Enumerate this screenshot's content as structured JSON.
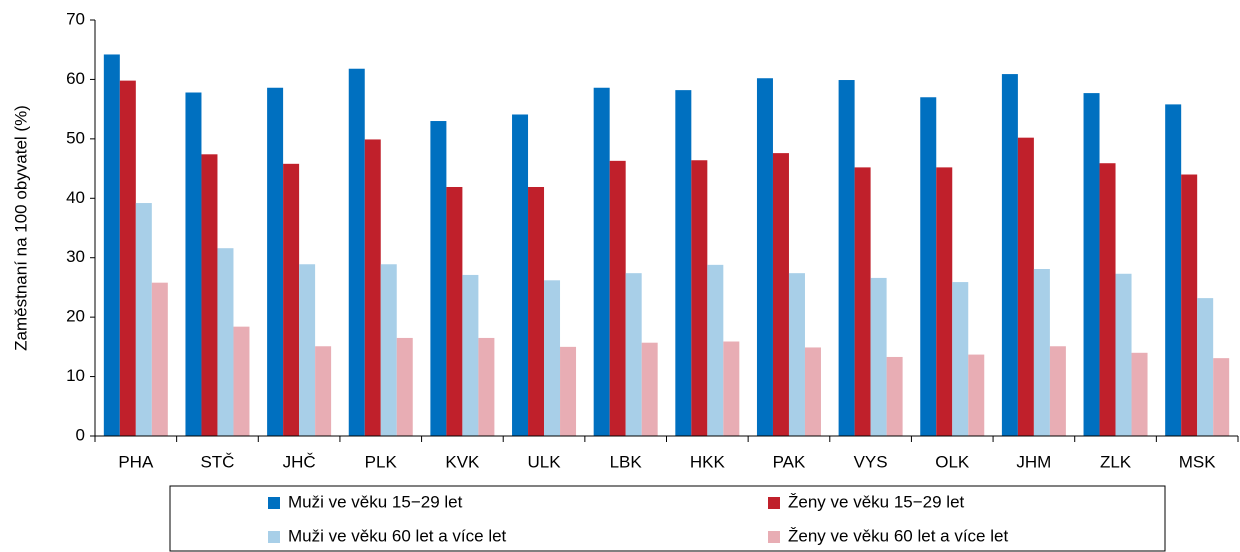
{
  "chart_data": {
    "type": "bar",
    "y_label": "Zaměstnaní na 100 obyvatel (%)",
    "categories": [
      "PHA",
      "STČ",
      "JHČ",
      "PLK",
      "KVK",
      "ULK",
      "LBK",
      "HKK",
      "PAK",
      "VYS",
      "OLK",
      "JHM",
      "ZLK",
      "MSK"
    ],
    "series": [
      {
        "name": "Muži ve věku 15−29 let",
        "color": "#0070c0",
        "values": [
          64.2,
          57.8,
          58.6,
          61.8,
          53.0,
          54.1,
          58.6,
          58.2,
          60.2,
          59.9,
          57.0,
          60.9,
          57.7,
          55.8
        ]
      },
      {
        "name": "Ženy ve věku 15−29 let",
        "color": "#c0202b",
        "values": [
          59.8,
          47.4,
          45.8,
          49.9,
          41.9,
          41.9,
          46.3,
          46.4,
          47.6,
          45.2,
          45.2,
          50.2,
          45.9,
          44.0
        ]
      },
      {
        "name": "Muži ve věku 60 let a více let",
        "color": "#a8cfe8",
        "values": [
          39.2,
          31.6,
          28.9,
          28.9,
          27.1,
          26.2,
          27.4,
          28.8,
          27.4,
          26.6,
          25.9,
          28.1,
          27.3,
          23.2
        ]
      },
      {
        "name": "Ženy ve věku 60 let a více let",
        "color": "#e8adb4",
        "values": [
          25.8,
          18.4,
          15.1,
          16.5,
          16.5,
          15.0,
          15.7,
          15.9,
          14.9,
          13.3,
          13.7,
          15.1,
          14.0,
          13.1
        ]
      }
    ],
    "ylim": [
      0,
      70
    ],
    "yticks": [
      0,
      10,
      20,
      30,
      40,
      50,
      60,
      70
    ],
    "grid": false,
    "legend": "bottom"
  }
}
